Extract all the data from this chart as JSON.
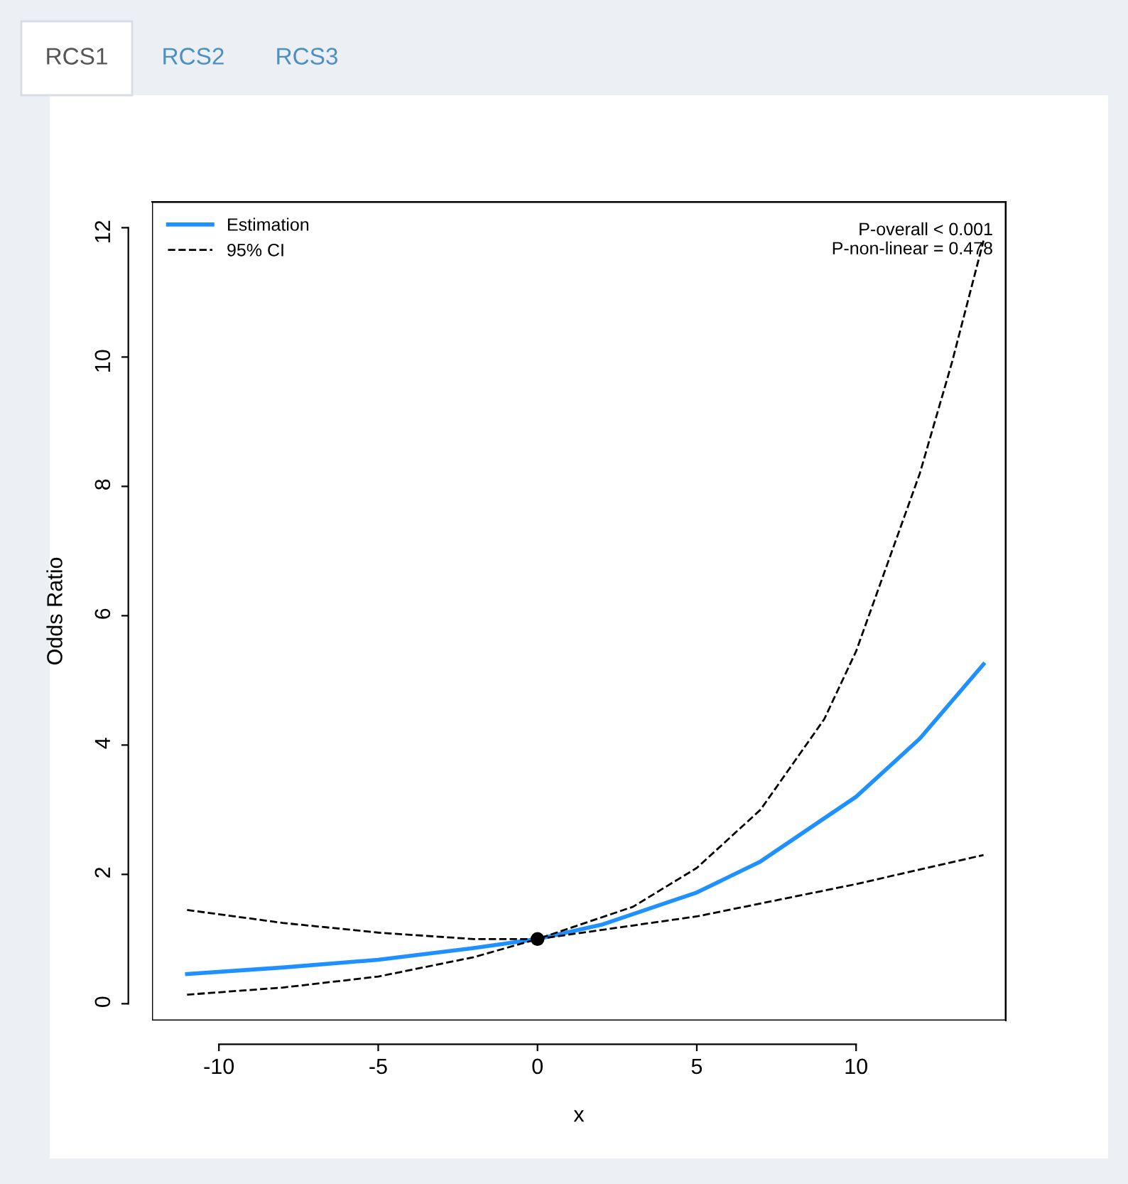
{
  "chart_data": {
    "type": "line",
    "xlabel": "x",
    "ylabel": "Odds Ratio",
    "annotations": [
      "RCS1",
      "RCS2",
      "RCS3",
      "P-overall < 0.001\nP-non-linear = 0.478"
    ],
    "xlim": [
      -12.1,
      14.7
    ],
    "ylim": [
      -0.26,
      12.4
    ],
    "xticks": [
      -10,
      -5,
      0,
      5,
      10
    ],
    "yticks": [
      0,
      2,
      4,
      6,
      8,
      10,
      12
    ],
    "grid": false,
    "legend": "top left",
    "series": [
      {
        "name": "Estimation",
        "color": "#1e90ff",
        "line_style": "solid",
        "x": [
          -11,
          -8,
          -5,
          -2,
          0,
          2,
          5,
          7,
          10,
          12,
          14
        ],
        "values": [
          0.46,
          0.56,
          0.68,
          0.86,
          1.0,
          1.22,
          1.72,
          2.2,
          3.2,
          4.1,
          5.25
        ]
      },
      {
        "name": "95% CI",
        "color": "#000000",
        "line_style": "dashed",
        "x": [
          -11,
          -8,
          -5,
          -2,
          0,
          3,
          5,
          7,
          9,
          10,
          12,
          13,
          14
        ],
        "values": [
          1.45,
          1.25,
          1.1,
          1.0,
          1.0,
          1.5,
          2.1,
          3.0,
          4.4,
          5.45,
          8.2,
          9.9,
          11.8
        ]
      },
      {
        "color": "#000000",
        "line_style": "dashed",
        "x": [
          -11,
          -8,
          -5,
          -2,
          0,
          5,
          10,
          14
        ],
        "values": [
          0.14,
          0.25,
          0.42,
          0.72,
          1.0,
          1.35,
          1.85,
          2.3
        ]
      },
      {
        "type": "scatter",
        "color": "#000000",
        "marker": "circle",
        "x": [
          0
        ],
        "values": [
          1.0
        ]
      }
    ]
  }
}
